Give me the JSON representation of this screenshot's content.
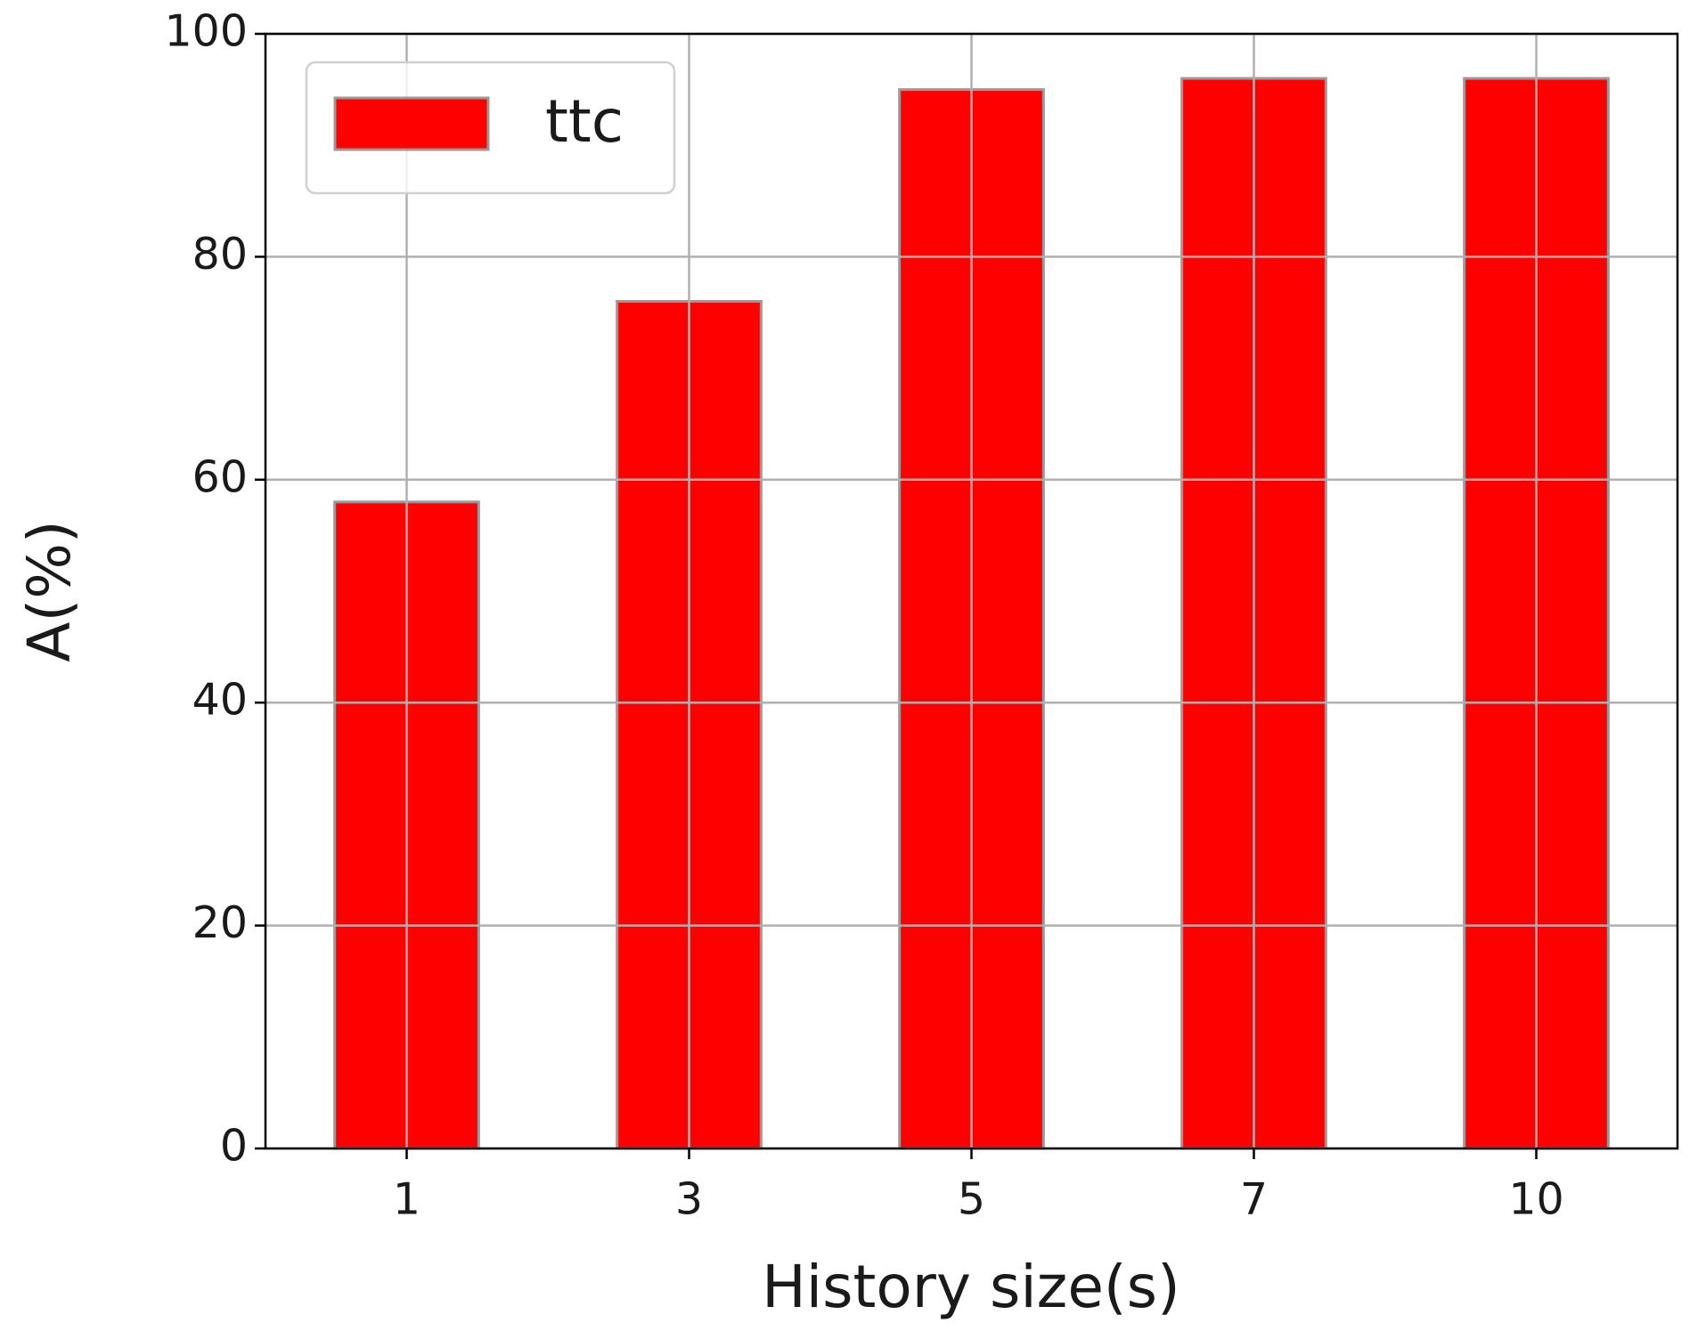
{
  "chart_data": {
    "type": "bar",
    "x_label": "History size(s)",
    "y_label": "A(%)",
    "categories": [
      "1",
      "3",
      "5",
      "7",
      "10"
    ],
    "series": [
      {
        "name": "ttc",
        "color": "#ff0000",
        "values": [
          58,
          76,
          95,
          96,
          96
        ]
      }
    ],
    "ylim": [
      0,
      100
    ],
    "yticks": [
      0,
      20,
      40,
      60,
      80,
      100
    ],
    "grid": true,
    "legend": "upper left"
  }
}
